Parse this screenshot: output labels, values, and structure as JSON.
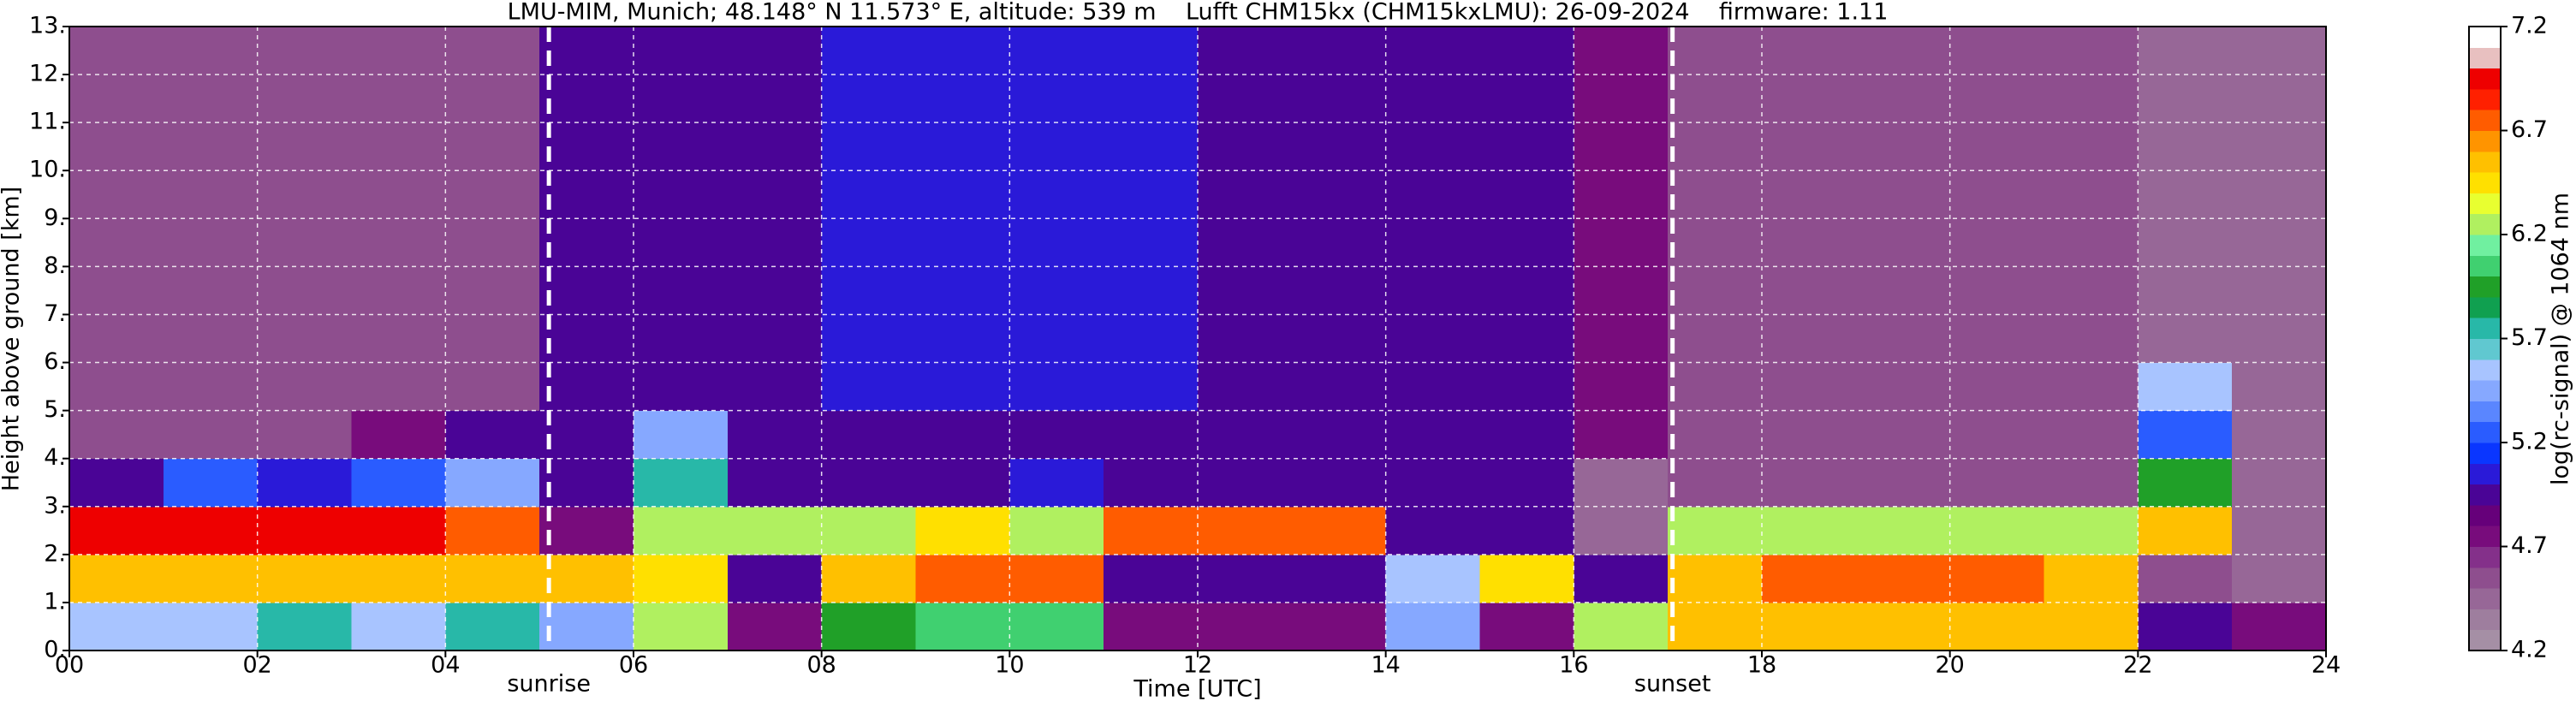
{
  "chart_data": {
    "type": "heatmap",
    "title": "LMU-MIM, Munich; 48.148° N 11.573° E, altitude: 539 m    Lufft CHM15kx (CHM15kxLMU): 26-09-2024    firmware: 1.11",
    "x_label": "Time [UTC]",
    "y_label": "Height above ground [km]",
    "colorbar_label": "log(rc-signal) @ 1064 nm",
    "xlim": [
      0,
      24
    ],
    "ylim": [
      0,
      13
    ],
    "xticks": [
      {
        "value": 0,
        "label": "00"
      },
      {
        "value": 2,
        "label": "02"
      },
      {
        "value": 4,
        "label": "04"
      },
      {
        "value": 6,
        "label": "06"
      },
      {
        "value": 8,
        "label": "08"
      },
      {
        "value": 10,
        "label": "10"
      },
      {
        "value": 12,
        "label": "12"
      },
      {
        "value": 14,
        "label": "14"
      },
      {
        "value": 16,
        "label": "16"
      },
      {
        "value": 18,
        "label": "18"
      },
      {
        "value": 20,
        "label": "20"
      },
      {
        "value": 22,
        "label": "22"
      },
      {
        "value": 24,
        "label": "24"
      }
    ],
    "yticks": [
      {
        "value": 0,
        "label": "0."
      },
      {
        "value": 1,
        "label": "1."
      },
      {
        "value": 2,
        "label": "2."
      },
      {
        "value": 3,
        "label": "3."
      },
      {
        "value": 4,
        "label": "4."
      },
      {
        "value": 5,
        "label": "5."
      },
      {
        "value": 6,
        "label": "6."
      },
      {
        "value": 7,
        "label": "7."
      },
      {
        "value": 8,
        "label": "8."
      },
      {
        "value": 9,
        "label": "9."
      },
      {
        "value": 10,
        "label": "10."
      },
      {
        "value": 11,
        "label": "11."
      },
      {
        "value": 12,
        "label": "12."
      },
      {
        "value": 13,
        "label": "13."
      }
    ],
    "grid": true,
    "clim": [
      4.2,
      7.2
    ],
    "cticks": [
      4.2,
      4.7,
      5.2,
      5.7,
      6.2,
      6.7,
      7.2
    ],
    "colormap": [
      "#a58fa5",
      "#9e7e9e",
      "#976797",
      "#8e4e8e",
      "#84308a",
      "#780c7c",
      "#66007a",
      "#4a0496",
      "#2a1ad8",
      "#0a36ff",
      "#2a5cff",
      "#5a86ff",
      "#86a8ff",
      "#a8c4ff",
      "#60c8d0",
      "#28b8a8",
      "#10a050",
      "#20a028",
      "#40d070",
      "#70f0a0",
      "#b0f060",
      "#e8ff30",
      "#ffe000",
      "#ffc000",
      "#ff9400",
      "#ff5c00",
      "#ff2000",
      "#ee0000",
      "#e8c0c0",
      "#ffffff"
    ],
    "xbins": [
      0,
      1,
      2,
      3,
      4,
      5,
      6,
      7,
      8,
      9,
      10,
      11,
      12,
      13,
      14,
      15,
      16,
      17,
      18,
      19,
      20,
      21,
      22,
      23,
      24
    ],
    "ybins": [
      0,
      1,
      2,
      3,
      4,
      5,
      6,
      7,
      8,
      9,
      10,
      11,
      12,
      13
    ],
    "z": [
      [
        5.6,
        5.6,
        5.8,
        5.6,
        5.7,
        5.5,
        6.2,
        4.8,
        5.9,
        6.0,
        6.1,
        4.8,
        4.7,
        4.7,
        5.4,
        4.8,
        6.2,
        6.6,
        6.6,
        6.6,
        6.6,
        6.6,
        4.9,
        4.8
      ],
      [
        6.6,
        6.5,
        6.6,
        6.6,
        6.6,
        6.6,
        6.4,
        5.0,
        6.6,
        6.7,
        6.8,
        5.0,
        4.9,
        5.0,
        5.6,
        6.4,
        4.9,
        6.6,
        6.7,
        6.8,
        6.7,
        6.6,
        4.6,
        4.5
      ],
      [
        7.0,
        6.9,
        7.0,
        7.0,
        6.8,
        4.8,
        6.2,
        6.3,
        6.2,
        6.4,
        6.3,
        6.7,
        6.8,
        6.7,
        5.0,
        5.0,
        4.5,
        6.2,
        6.3,
        6.3,
        6.3,
        6.3,
        6.5,
        4.5
      ],
      [
        4.9,
        5.2,
        5.1,
        5.3,
        5.4,
        5.0,
        5.8,
        5.0,
        5.0,
        5.0,
        5.1,
        5.0,
        5.0,
        5.0,
        5.0,
        5.0,
        4.5,
        4.6,
        4.6,
        4.6,
        4.6,
        4.6,
        5.9,
        4.5
      ],
      [
        4.6,
        4.6,
        4.6,
        4.7,
        4.9,
        5.0,
        5.4,
        5.0,
        5.0,
        5.0,
        5.0,
        5.0,
        5.0,
        5.0,
        5.0,
        5.0,
        4.8,
        4.6,
        4.6,
        4.6,
        4.6,
        4.6,
        5.2,
        4.5
      ],
      [
        4.6,
        4.6,
        4.6,
        4.6,
        4.6,
        5.0,
        5.0,
        5.0,
        5.1,
        5.1,
        5.1,
        5.1,
        5.0,
        5.0,
        5.0,
        5.0,
        4.8,
        4.6,
        4.6,
        4.6,
        4.6,
        4.6,
        5.6,
        4.5
      ],
      [
        4.6,
        4.6,
        4.6,
        4.6,
        4.6,
        5.0,
        5.0,
        5.0,
        5.1,
        5.1,
        5.1,
        5.1,
        5.0,
        5.0,
        5.0,
        5.0,
        4.8,
        4.6,
        4.6,
        4.6,
        4.6,
        4.6,
        4.5,
        4.5
      ],
      [
        4.6,
        4.6,
        4.6,
        4.6,
        4.6,
        5.0,
        5.0,
        5.0,
        5.1,
        5.1,
        5.1,
        5.1,
        5.0,
        5.0,
        5.0,
        5.0,
        4.8,
        4.6,
        4.6,
        4.6,
        4.6,
        4.6,
        4.5,
        4.5
      ],
      [
        4.6,
        4.6,
        4.6,
        4.6,
        4.6,
        5.0,
        5.0,
        5.0,
        5.1,
        5.1,
        5.1,
        5.1,
        5.0,
        5.0,
        5.0,
        5.0,
        4.8,
        4.6,
        4.6,
        4.6,
        4.6,
        4.6,
        4.5,
        4.5
      ],
      [
        4.6,
        4.6,
        4.6,
        4.6,
        4.6,
        5.0,
        5.0,
        5.0,
        5.1,
        5.1,
        5.1,
        5.1,
        5.0,
        5.0,
        5.0,
        5.0,
        4.8,
        4.6,
        4.6,
        4.6,
        4.6,
        4.6,
        4.5,
        4.5
      ],
      [
        4.6,
        4.6,
        4.6,
        4.6,
        4.6,
        5.0,
        5.0,
        5.0,
        5.1,
        5.1,
        5.1,
        5.1,
        5.0,
        5.0,
        5.0,
        5.0,
        4.8,
        4.6,
        4.6,
        4.6,
        4.6,
        4.6,
        4.5,
        4.5
      ],
      [
        4.6,
        4.6,
        4.6,
        4.6,
        4.6,
        5.0,
        5.0,
        5.0,
        5.1,
        5.1,
        5.1,
        5.1,
        5.0,
        5.0,
        5.0,
        5.0,
        4.8,
        4.6,
        4.6,
        4.6,
        4.6,
        4.6,
        4.5,
        4.5
      ],
      [
        4.6,
        4.6,
        4.6,
        4.6,
        4.6,
        5.0,
        5.0,
        5.0,
        5.1,
        5.1,
        5.1,
        5.1,
        5.0,
        5.0,
        5.0,
        5.0,
        4.8,
        4.6,
        4.6,
        4.6,
        4.6,
        4.6,
        4.5,
        4.5
      ]
    ],
    "annotations": [
      {
        "text": "sunrise",
        "x": 5.1
      },
      {
        "text": "sunset",
        "x": 17.05
      }
    ]
  }
}
